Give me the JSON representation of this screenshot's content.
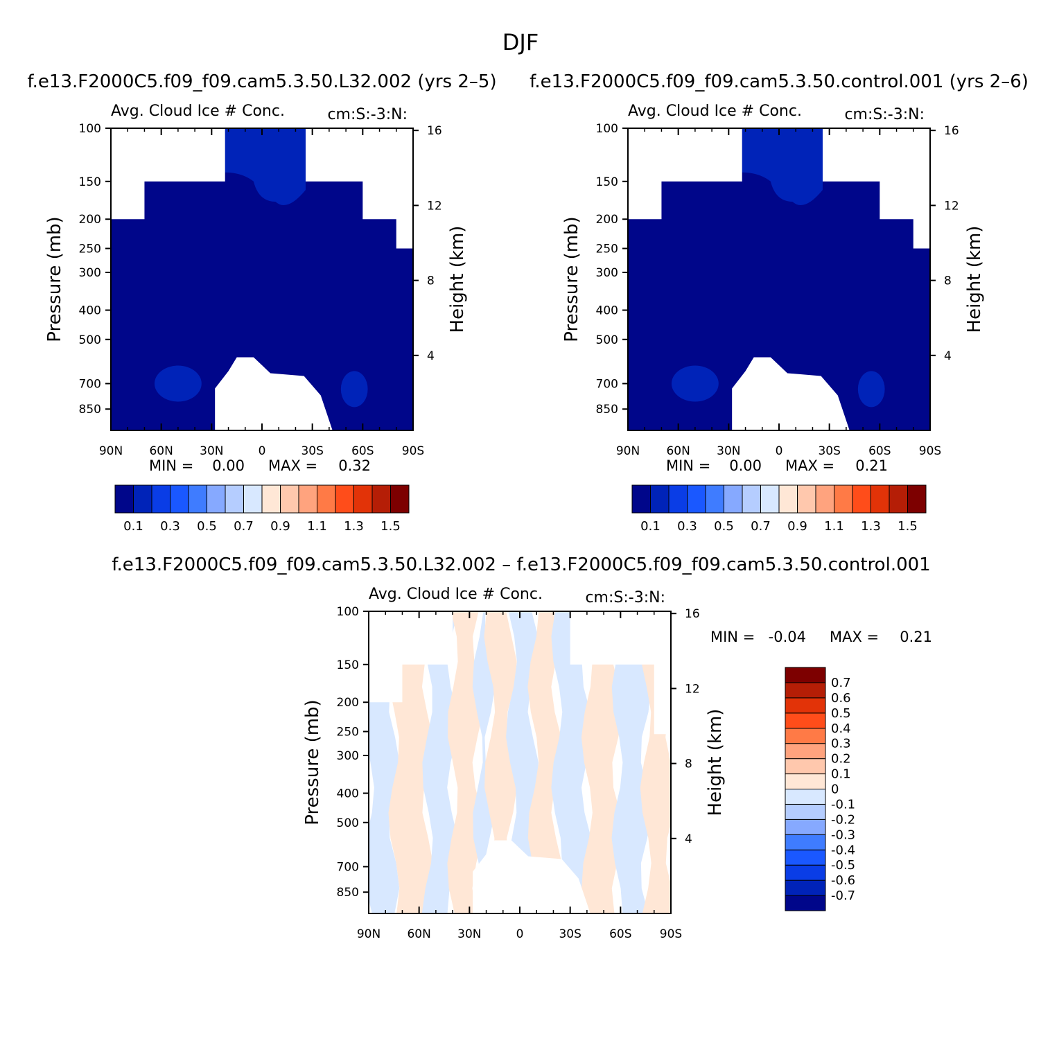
{
  "page": {
    "title": "DJF"
  },
  "colors": {
    "abs_levels": [
      "#00068a",
      "#0023b8",
      "#0a3de6",
      "#1a58ff",
      "#3f7cff",
      "#86a9ff",
      "#b5cdff",
      "#d8e8ff",
      "#ffe7d6",
      "#ffc8ad",
      "#ffa37e",
      "#ff7a46",
      "#ff4d1a",
      "#e23308",
      "#b51e06",
      "#7d0000"
    ],
    "diff_levels": [
      "#00068a",
      "#0023b8",
      "#0a3de6",
      "#1a58ff",
      "#3f7cff",
      "#86a9ff",
      "#b5cdff",
      "#d8e8ff",
      "#ffe7d6",
      "#ffc8ad",
      "#ffa37e",
      "#ff7a46",
      "#ff4d1a",
      "#e23308",
      "#b51e06",
      "#7d0000"
    ],
    "axis": "#000000",
    "missing": "#ffffff"
  },
  "chart_data": [
    {
      "id": "case1",
      "type": "heatmap",
      "panel_title": "f.e13.F2000C5.f09_f09.cam5.3.50.L32.002 (yrs 2–5)",
      "left_label": "Avg. Cloud Ice # Conc.",
      "right_label": "cm:S:-3:N:",
      "ylabel": "Pressure (mb)",
      "y2label": "Height (km)",
      "x_ticks": [
        "90N",
        "60N",
        "30N",
        "0",
        "30S",
        "60S",
        "90S"
      ],
      "x_values": [
        90,
        60,
        30,
        0,
        -30,
        -60,
        -90
      ],
      "p_ticks": [
        100,
        150,
        200,
        250,
        300,
        400,
        500,
        700,
        850
      ],
      "p_range": [
        100,
        1000
      ],
      "z_ticks": [
        4,
        8,
        12,
        16
      ],
      "stats": {
        "min_label": "MIN =",
        "min": "0.00",
        "max_label": "MAX =",
        "max": "0.32"
      },
      "colorbar": {
        "labels": [
          "0.1",
          "0.3",
          "0.5",
          "0.7",
          "0.9",
          "1.1",
          "1.3",
          "1.5"
        ]
      },
      "field": {
        "base_level": 0,
        "upper_region_x": [
          22,
          0
        ],
        "upper_level": 2
      },
      "upper_anomalies": [
        {
          "xc": 10,
          "pc": 130,
          "xw": 12,
          "pw": 40,
          "level": 2
        }
      ],
      "low_blobs": [
        {
          "xc": 50,
          "pc": 700,
          "xw": 14,
          "pw": 130,
          "level": 1
        },
        {
          "xc": -55,
          "pc": 730,
          "xw": 8,
          "pw": 80,
          "level": 1
        }
      ]
    },
    {
      "id": "case2",
      "type": "heatmap",
      "panel_title": "f.e13.F2000C5.f09_f09.cam5.3.50.control.001 (yrs 2–6)",
      "left_label": "Avg. Cloud Ice # Conc.",
      "right_label": "cm:S:-3:N:",
      "ylabel": "Pressure (mb)",
      "y2label": "Height (km)",
      "x_ticks": [
        "90N",
        "60N",
        "30N",
        "0",
        "30S",
        "60S",
        "90S"
      ],
      "x_values": [
        90,
        60,
        30,
        0,
        -30,
        -60,
        -90
      ],
      "p_ticks": [
        100,
        150,
        200,
        250,
        300,
        400,
        500,
        700,
        850
      ],
      "p_range": [
        100,
        1000
      ],
      "z_ticks": [
        4,
        8,
        12,
        16
      ],
      "stats": {
        "min_label": "MIN =",
        "min": "0.00",
        "max_label": "MAX =",
        "max": "0.21"
      },
      "colorbar": {
        "labels": [
          "0.1",
          "0.3",
          "0.5",
          "0.7",
          "0.9",
          "1.1",
          "1.3",
          "1.5"
        ]
      },
      "low_blobs": [
        {
          "xc": 50,
          "pc": 700,
          "xw": 14,
          "pw": 130,
          "level": 1
        },
        {
          "xc": -55,
          "pc": 730,
          "xw": 8,
          "pw": 80,
          "level": 1
        }
      ]
    },
    {
      "id": "diff",
      "type": "heatmap",
      "panel_title": "f.e13.F2000C5.f09_f09.cam5.3.50.L32.002 – f.e13.F2000C5.f09_f09.cam5.3.50.control.001",
      "left_label": "Avg. Cloud Ice # Conc.",
      "right_label": "cm:S:-3:N:",
      "ylabel": "Pressure (mb)",
      "y2label": "Height (km)",
      "x_ticks": [
        "90N",
        "60N",
        "30N",
        "0",
        "30S",
        "60S",
        "90S"
      ],
      "x_values": [
        90,
        60,
        30,
        0,
        -30,
        -60,
        -90
      ],
      "p_ticks": [
        100,
        150,
        200,
        250,
        300,
        400,
        500,
        700,
        850
      ],
      "p_range": [
        100,
        1000
      ],
      "z_ticks": [
        4,
        8,
        12,
        16
      ],
      "stats": {
        "min_label": "MIN =",
        "min": "-0.04",
        "max_label": "MAX =",
        "max": "0.21"
      },
      "colorbar": {
        "labels": [
          "0.7",
          "0.6",
          "0.5",
          "0.4",
          "0.3",
          "0.2",
          "0.1",
          "0",
          "-0.1",
          "-0.2",
          "-0.3",
          "-0.4",
          "-0.5",
          "-0.6",
          "-0.7"
        ]
      },
      "bands": [
        {
          "x0": 90,
          "x1": 75,
          "level": 7
        },
        {
          "x0": 75,
          "x1": 55,
          "level": 8
        },
        {
          "x0": 55,
          "x1": 40,
          "level": 7
        },
        {
          "x0": 40,
          "x1": 25,
          "level": 8
        },
        {
          "x0": 25,
          "x1": 18,
          "level": 7
        },
        {
          "x0": 18,
          "x1": 5,
          "level": 8
        },
        {
          "x0": 5,
          "x1": -8,
          "level": 7
        },
        {
          "x0": -8,
          "x1": -22,
          "level": 8
        },
        {
          "x0": -22,
          "x1": -40,
          "level": 7
        },
        {
          "x0": -40,
          "x1": -58,
          "level": 8
        },
        {
          "x0": -58,
          "x1": -75,
          "level": 7
        },
        {
          "x0": -75,
          "x1": -90,
          "level": 8
        }
      ]
    }
  ]
}
